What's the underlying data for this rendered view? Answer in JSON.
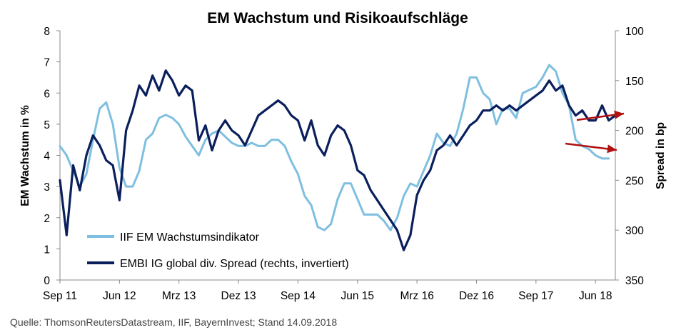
{
  "chart_data": {
    "type": "line",
    "title": "EM Wachstum und Risikoaufschläge",
    "ylabel_left": "EM Wachstum in %",
    "ylabel_right": "Spread in bp",
    "ylim_left": [
      0,
      8
    ],
    "ylim_right": [
      350,
      100
    ],
    "right_axis_inverted": true,
    "yticks_left": [
      "0",
      "1",
      "2",
      "3",
      "4",
      "5",
      "6",
      "7",
      "8"
    ],
    "yticks_right": [
      "100",
      "150",
      "200",
      "250",
      "300",
      "350"
    ],
    "x_range": [
      "2011-09",
      "2018-09"
    ],
    "x_ticks": [
      "Sep 11",
      "Jun 12",
      "Mrz 13",
      "Dez 13",
      "Sep 14",
      "Jun 15",
      "Mrz 16",
      "Dez 16",
      "Sep 17",
      "Jun 18"
    ],
    "legend_position": "bottom-left",
    "grid": false,
    "colors": {
      "growth": "#7fbfe0",
      "spread": "#0a1f5c",
      "arrow": "#b01010"
    },
    "source": "Quelle: ThomsonReutersDatastream, IIF, BayernInvest; Stand 14.09.2018",
    "series": [
      {
        "name": "IIF EM Wachstumsindikator",
        "axis": "left",
        "color": "#7fbfe0",
        "points": [
          [
            "2011-09",
            4.3
          ],
          [
            "2011-10",
            4.0
          ],
          [
            "2011-11",
            3.5
          ],
          [
            "2011-12",
            3.0
          ],
          [
            "2012-01",
            3.4
          ],
          [
            "2012-02",
            4.5
          ],
          [
            "2012-03",
            5.5
          ],
          [
            "2012-04",
            5.7
          ],
          [
            "2012-05",
            5.0
          ],
          [
            "2012-06",
            3.6
          ],
          [
            "2012-07",
            3.0
          ],
          [
            "2012-08",
            3.0
          ],
          [
            "2012-09",
            3.5
          ],
          [
            "2012-10",
            4.5
          ],
          [
            "2012-11",
            4.7
          ],
          [
            "2012-12",
            5.2
          ],
          [
            "2013-01",
            5.3
          ],
          [
            "2013-02",
            5.2
          ],
          [
            "2013-03",
            5.0
          ],
          [
            "2013-04",
            4.6
          ],
          [
            "2013-05",
            4.3
          ],
          [
            "2013-06",
            4.0
          ],
          [
            "2013-07",
            4.5
          ],
          [
            "2013-08",
            4.7
          ],
          [
            "2013-09",
            4.8
          ],
          [
            "2013-10",
            4.6
          ],
          [
            "2013-11",
            4.4
          ],
          [
            "2013-12",
            4.3
          ],
          [
            "2014-01",
            4.3
          ],
          [
            "2014-02",
            4.4
          ],
          [
            "2014-03",
            4.3
          ],
          [
            "2014-04",
            4.3
          ],
          [
            "2014-05",
            4.5
          ],
          [
            "2014-06",
            4.5
          ],
          [
            "2014-07",
            4.3
          ],
          [
            "2014-08",
            3.8
          ],
          [
            "2014-09",
            3.4
          ],
          [
            "2014-10",
            2.7
          ],
          [
            "2014-11",
            2.4
          ],
          [
            "2014-12",
            1.7
          ],
          [
            "2015-01",
            1.6
          ],
          [
            "2015-02",
            1.8
          ],
          [
            "2015-03",
            2.6
          ],
          [
            "2015-04",
            3.1
          ],
          [
            "2015-05",
            3.1
          ],
          [
            "2015-06",
            2.6
          ],
          [
            "2015-07",
            2.1
          ],
          [
            "2015-08",
            2.1
          ],
          [
            "2015-09",
            2.1
          ],
          [
            "2015-10",
            1.9
          ],
          [
            "2015-11",
            1.6
          ],
          [
            "2015-12",
            2.0
          ],
          [
            "2016-01",
            2.7
          ],
          [
            "2016-02",
            3.1
          ],
          [
            "2016-03",
            3.0
          ],
          [
            "2016-04",
            3.5
          ],
          [
            "2016-05",
            4.0
          ],
          [
            "2016-06",
            4.7
          ],
          [
            "2016-07",
            4.4
          ],
          [
            "2016-08",
            4.3
          ],
          [
            "2016-09",
            4.7
          ],
          [
            "2016-10",
            5.5
          ],
          [
            "2016-11",
            6.5
          ],
          [
            "2016-12",
            6.5
          ],
          [
            "2017-01",
            6.0
          ],
          [
            "2017-02",
            5.8
          ],
          [
            "2017-03",
            5.0
          ],
          [
            "2017-04",
            5.5
          ],
          [
            "2017-05",
            5.5
          ],
          [
            "2017-06",
            5.2
          ],
          [
            "2017-07",
            6.0
          ],
          [
            "2017-08",
            6.1
          ],
          [
            "2017-09",
            6.2
          ],
          [
            "2017-10",
            6.5
          ],
          [
            "2017-11",
            6.9
          ],
          [
            "2017-12",
            6.7
          ],
          [
            "2018-01",
            6.0
          ],
          [
            "2018-02",
            5.6
          ],
          [
            "2018-03",
            4.5
          ],
          [
            "2018-04",
            4.3
          ],
          [
            "2018-05",
            4.2
          ],
          [
            "2018-06",
            4.0
          ],
          [
            "2018-07",
            3.9
          ],
          [
            "2018-08",
            3.9
          ]
        ]
      },
      {
        "name": "EMBI IG global div. Spread (rechts, invertiert)",
        "axis": "right",
        "color": "#0a1f5c",
        "points": [
          [
            "2011-09",
            250
          ],
          [
            "2011-10",
            305
          ],
          [
            "2011-11",
            235
          ],
          [
            "2011-12",
            260
          ],
          [
            "2012-01",
            225
          ],
          [
            "2012-02",
            205
          ],
          [
            "2012-03",
            215
          ],
          [
            "2012-04",
            230
          ],
          [
            "2012-05",
            235
          ],
          [
            "2012-06",
            270
          ],
          [
            "2012-07",
            200
          ],
          [
            "2012-08",
            180
          ],
          [
            "2012-09",
            155
          ],
          [
            "2012-10",
            165
          ],
          [
            "2012-11",
            145
          ],
          [
            "2012-12",
            160
          ],
          [
            "2013-01",
            140
          ],
          [
            "2013-02",
            150
          ],
          [
            "2013-03",
            165
          ],
          [
            "2013-04",
            155
          ],
          [
            "2013-05",
            160
          ],
          [
            "2013-06",
            210
          ],
          [
            "2013-07",
            195
          ],
          [
            "2013-08",
            220
          ],
          [
            "2013-09",
            200
          ],
          [
            "2013-10",
            190
          ],
          [
            "2013-11",
            200
          ],
          [
            "2013-12",
            205
          ],
          [
            "2014-01",
            215
          ],
          [
            "2014-02",
            200
          ],
          [
            "2014-03",
            185
          ],
          [
            "2014-04",
            180
          ],
          [
            "2014-05",
            175
          ],
          [
            "2014-06",
            170
          ],
          [
            "2014-07",
            175
          ],
          [
            "2014-08",
            185
          ],
          [
            "2014-09",
            190
          ],
          [
            "2014-10",
            210
          ],
          [
            "2014-11",
            190
          ],
          [
            "2014-12",
            215
          ],
          [
            "2015-01",
            225
          ],
          [
            "2015-02",
            205
          ],
          [
            "2015-03",
            195
          ],
          [
            "2015-04",
            200
          ],
          [
            "2015-05",
            215
          ],
          [
            "2015-06",
            240
          ],
          [
            "2015-07",
            245
          ],
          [
            "2015-08",
            260
          ],
          [
            "2015-09",
            270
          ],
          [
            "2015-10",
            280
          ],
          [
            "2015-11",
            290
          ],
          [
            "2015-12",
            300
          ],
          [
            "2016-01",
            320
          ],
          [
            "2016-02",
            305
          ],
          [
            "2016-03",
            265
          ],
          [
            "2016-04",
            250
          ],
          [
            "2016-05",
            240
          ],
          [
            "2016-06",
            220
          ],
          [
            "2016-07",
            215
          ],
          [
            "2016-08",
            205
          ],
          [
            "2016-09",
            215
          ],
          [
            "2016-10",
            205
          ],
          [
            "2016-11",
            195
          ],
          [
            "2016-12",
            190
          ],
          [
            "2017-01",
            180
          ],
          [
            "2017-02",
            180
          ],
          [
            "2017-03",
            175
          ],
          [
            "2017-04",
            180
          ],
          [
            "2017-05",
            175
          ],
          [
            "2017-06",
            180
          ],
          [
            "2017-07",
            175
          ],
          [
            "2017-08",
            170
          ],
          [
            "2017-09",
            165
          ],
          [
            "2017-10",
            160
          ],
          [
            "2017-11",
            150
          ],
          [
            "2017-12",
            160
          ],
          [
            "2018-01",
            155
          ],
          [
            "2018-02",
            175
          ],
          [
            "2018-03",
            185
          ],
          [
            "2018-04",
            180
          ],
          [
            "2018-05",
            190
          ],
          [
            "2018-06",
            190
          ],
          [
            "2018-07",
            175
          ],
          [
            "2018-08",
            190
          ],
          [
            "2018-09",
            185
          ]
        ]
      }
    ]
  }
}
